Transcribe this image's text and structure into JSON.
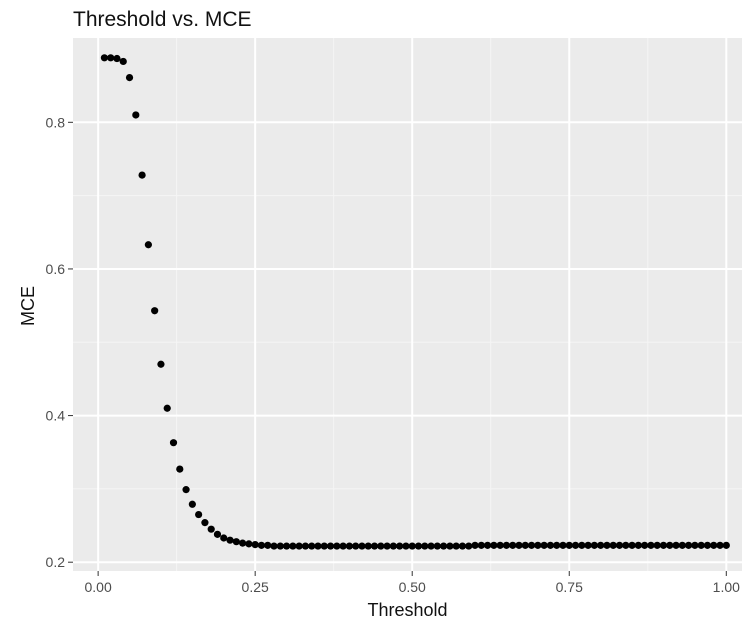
{
  "chart_data": {
    "type": "scatter",
    "title": "Threshold vs. MCE",
    "xlabel": "Threshold",
    "ylabel": "MCE",
    "xlim": [
      -0.04,
      1.025
    ],
    "ylim": [
      0.188,
      0.915
    ],
    "x_ticks": [
      0,
      0.25,
      0.5,
      0.75,
      1
    ],
    "x_tick_labels": [
      "0.00",
      "0.25",
      "0.50",
      "0.75",
      "1.00"
    ],
    "y_ticks": [
      0.2,
      0.4,
      0.6,
      0.8
    ],
    "y_tick_labels": [
      "0.2",
      "0.4",
      "0.6",
      "0.8"
    ],
    "grid": true,
    "legend": "none",
    "colors": {
      "panel_background": "#ebebeb",
      "grid_major": "#ffffff",
      "grid_minor": "#f5f5f5",
      "point": "#000000",
      "tick_mark": "#333333"
    },
    "x": [
      0.01,
      0.02,
      0.03,
      0.04,
      0.05,
      0.06,
      0.07,
      0.08,
      0.09,
      0.1,
      0.11,
      0.12,
      0.13,
      0.14,
      0.15,
      0.16,
      0.17,
      0.18,
      0.19,
      0.2,
      0.21,
      0.22,
      0.23,
      0.24,
      0.25,
      0.26,
      0.27,
      0.28,
      0.29,
      0.3,
      0.31,
      0.32,
      0.33,
      0.34,
      0.35,
      0.36,
      0.37,
      0.38,
      0.39,
      0.4,
      0.41,
      0.42,
      0.43,
      0.44,
      0.45,
      0.46,
      0.47,
      0.48,
      0.49,
      0.5,
      0.51,
      0.52,
      0.53,
      0.54,
      0.55,
      0.56,
      0.57,
      0.58,
      0.59,
      0.6,
      0.61,
      0.62,
      0.63,
      0.64,
      0.65,
      0.66,
      0.67,
      0.68,
      0.69,
      0.7,
      0.71,
      0.72,
      0.73,
      0.74,
      0.75,
      0.76,
      0.77,
      0.78,
      0.79,
      0.8,
      0.81,
      0.82,
      0.83,
      0.84,
      0.85,
      0.86,
      0.87,
      0.88,
      0.89,
      0.9,
      0.91,
      0.92,
      0.93,
      0.94,
      0.95,
      0.96,
      0.97,
      0.98,
      0.99,
      1.0
    ],
    "y": [
      0.888,
      0.888,
      0.887,
      0.883,
      0.861,
      0.81,
      0.728,
      0.633,
      0.543,
      0.47,
      0.41,
      0.363,
      0.327,
      0.299,
      0.279,
      0.265,
      0.254,
      0.245,
      0.238,
      0.233,
      0.23,
      0.228,
      0.226,
      0.225,
      0.224,
      0.223,
      0.223,
      0.222,
      0.222,
      0.222,
      0.222,
      0.222,
      0.222,
      0.222,
      0.222,
      0.222,
      0.222,
      0.222,
      0.222,
      0.222,
      0.222,
      0.222,
      0.222,
      0.222,
      0.222,
      0.222,
      0.222,
      0.222,
      0.222,
      0.222,
      0.222,
      0.222,
      0.222,
      0.222,
      0.222,
      0.222,
      0.222,
      0.222,
      0.222,
      0.223,
      0.223,
      0.223,
      0.223,
      0.223,
      0.223,
      0.223,
      0.223,
      0.223,
      0.223,
      0.223,
      0.223,
      0.223,
      0.223,
      0.223,
      0.223,
      0.223,
      0.223,
      0.223,
      0.223,
      0.223,
      0.223,
      0.223,
      0.223,
      0.223,
      0.223,
      0.223,
      0.223,
      0.223,
      0.223,
      0.223,
      0.223,
      0.223,
      0.223,
      0.223,
      0.223,
      0.223,
      0.223,
      0.223,
      0.223,
      0.223
    ]
  }
}
